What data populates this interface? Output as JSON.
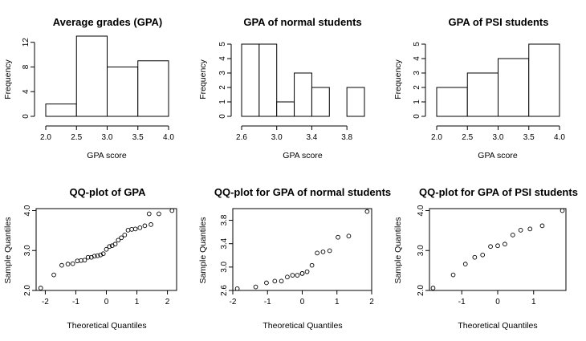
{
  "chart_data": [
    {
      "type": "bar",
      "title": "Average grades (GPA)",
      "xlabel": "GPA score",
      "ylabel": "Frequency",
      "bins": [
        [
          2.0,
          2.5
        ],
        [
          2.5,
          3.0
        ],
        [
          3.0,
          3.5
        ],
        [
          3.5,
          4.0
        ]
      ],
      "values": [
        2,
        13,
        8,
        9
      ],
      "xlim": [
        2.0,
        4.0
      ],
      "ylim": [
        0,
        13
      ],
      "xticks": [
        "2.0",
        "2.5",
        "3.0",
        "3.5",
        "4.0"
      ],
      "yticks": [
        "0",
        "4",
        "8",
        "12"
      ]
    },
    {
      "type": "bar",
      "title": "GPA of normal students",
      "xlabel": "GPA score",
      "ylabel": "Frequency",
      "bins": [
        [
          2.6,
          2.8
        ],
        [
          2.8,
          3.0
        ],
        [
          3.0,
          3.2
        ],
        [
          3.2,
          3.4
        ],
        [
          3.4,
          3.6
        ],
        [
          3.6,
          3.8
        ],
        [
          3.8,
          4.0
        ]
      ],
      "values": [
        5,
        5,
        1,
        3,
        2,
        0,
        2
      ],
      "xlim": [
        2.6,
        4.0
      ],
      "ylim": [
        0,
        5
      ],
      "xticks": [
        "2.6",
        "3.0",
        "3.4",
        "3.8"
      ],
      "yticks": [
        "0",
        "1",
        "2",
        "3",
        "4",
        "5"
      ]
    },
    {
      "type": "bar",
      "title": "GPA of PSI students",
      "xlabel": "GPA score",
      "ylabel": "Frequency",
      "bins": [
        [
          2.0,
          2.5
        ],
        [
          2.5,
          3.0
        ],
        [
          3.0,
          3.5
        ],
        [
          3.5,
          4.0
        ]
      ],
      "values": [
        2,
        3,
        4,
        5
      ],
      "xlim": [
        2.0,
        4.0
      ],
      "ylim": [
        0,
        5
      ],
      "xticks": [
        "2.0",
        "2.5",
        "3.0",
        "3.5",
        "4.0"
      ],
      "yticks": [
        "0",
        "1",
        "2",
        "3",
        "4",
        "5"
      ]
    },
    {
      "type": "scatter",
      "title": "QQ-plot of GPA",
      "xlabel": "Theoretical Quantiles",
      "ylabel": "Sample Quantiles",
      "xlim": [
        -2.3,
        2.3
      ],
      "ylim": [
        2.0,
        4.05
      ],
      "xticks": [
        "-2",
        "-1",
        "0",
        "1",
        "2"
      ],
      "yticks": [
        "2.0",
        "3.0",
        "4.0"
      ],
      "points": [
        [
          -2.15,
          2.06
        ],
        [
          -1.72,
          2.39
        ],
        [
          -1.46,
          2.63
        ],
        [
          -1.26,
          2.66
        ],
        [
          -1.1,
          2.67
        ],
        [
          -0.95,
          2.74
        ],
        [
          -0.83,
          2.75
        ],
        [
          -0.71,
          2.76
        ],
        [
          -0.6,
          2.83
        ],
        [
          -0.49,
          2.83
        ],
        [
          -0.39,
          2.86
        ],
        [
          -0.29,
          2.87
        ],
        [
          -0.19,
          2.89
        ],
        [
          -0.1,
          2.92
        ],
        [
          0.0,
          3.03
        ],
        [
          0.1,
          3.1
        ],
        [
          0.19,
          3.12
        ],
        [
          0.29,
          3.16
        ],
        [
          0.39,
          3.26
        ],
        [
          0.49,
          3.32
        ],
        [
          0.6,
          3.39
        ],
        [
          0.71,
          3.51
        ],
        [
          0.83,
          3.53
        ],
        [
          0.95,
          3.54
        ],
        [
          1.1,
          3.57
        ],
        [
          1.26,
          3.62
        ],
        [
          1.46,
          3.65
        ],
        [
          1.72,
          3.92
        ],
        [
          2.15,
          4.0
        ],
        [
          1.4,
          3.92
        ]
      ]
    },
    {
      "type": "scatter",
      "title": "QQ-plot for GPA of normal students",
      "xlabel": "Theoretical Quantiles",
      "ylabel": "Sample Quantiles",
      "xlim": [
        -2.0,
        2.0
      ],
      "ylim": [
        2.6,
        4.0
      ],
      "xticks": [
        "-2",
        "-1",
        "0",
        "1",
        "2"
      ],
      "yticks": [
        "2.6",
        "3.0",
        "3.4",
        "3.8"
      ],
      "points": [
        [
          -1.87,
          2.63
        ],
        [
          -1.34,
          2.66
        ],
        [
          -1.03,
          2.73
        ],
        [
          -0.79,
          2.76
        ],
        [
          -0.6,
          2.76
        ],
        [
          -0.43,
          2.83
        ],
        [
          -0.28,
          2.86
        ],
        [
          -0.14,
          2.86
        ],
        [
          0.0,
          2.89
        ],
        [
          0.14,
          2.92
        ],
        [
          0.28,
          3.03
        ],
        [
          0.43,
          3.24
        ],
        [
          0.6,
          3.26
        ],
        [
          0.79,
          3.28
        ],
        [
          1.03,
          3.51
        ],
        [
          1.34,
          3.53
        ],
        [
          1.87,
          3.95
        ],
        [
          0.0,
          2.89
        ]
      ]
    },
    {
      "type": "scatter",
      "title": "QQ-plot for GPA of PSI students",
      "xlabel": "Theoretical Quantiles",
      "ylabel": "Sample Quantiles",
      "xlim": [
        -1.9,
        1.9
      ],
      "ylim": [
        2.0,
        4.05
      ],
      "xticks": [
        "-1",
        "0",
        "1"
      ],
      "yticks": [
        "2.0",
        "3.0",
        "4.0"
      ],
      "points": [
        [
          -1.8,
          2.06
        ],
        [
          -1.24,
          2.39
        ],
        [
          -0.9,
          2.66
        ],
        [
          -0.64,
          2.83
        ],
        [
          -0.42,
          2.89
        ],
        [
          -0.2,
          3.1
        ],
        [
          0.0,
          3.12
        ],
        [
          0.2,
          3.16
        ],
        [
          0.42,
          3.39
        ],
        [
          0.64,
          3.51
        ],
        [
          0.9,
          3.54
        ],
        [
          1.24,
          3.62
        ],
        [
          1.8,
          4.0
        ]
      ]
    }
  ]
}
